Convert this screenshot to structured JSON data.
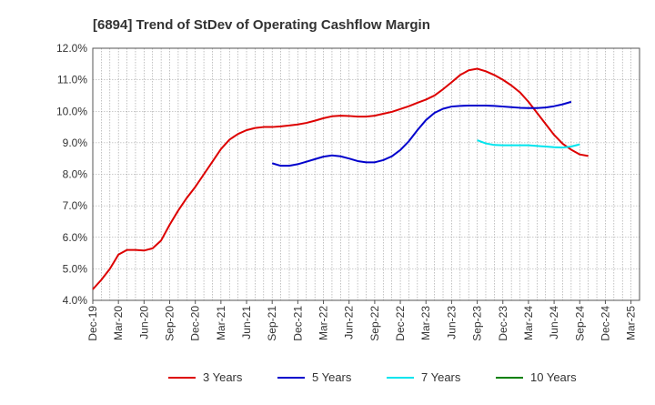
{
  "chart_data": {
    "type": "line",
    "title": "[6894]  Trend of StDev of Operating Cashflow Margin",
    "xlabel": "",
    "ylabel": "",
    "ylim": [
      4.0,
      12.0
    ],
    "y_ticks": [
      "4.0%",
      "5.0%",
      "6.0%",
      "7.0%",
      "8.0%",
      "9.0%",
      "10.0%",
      "11.0%",
      "12.0%"
    ],
    "x_ticks": [
      "Dec-19",
      "Mar-20",
      "Jun-20",
      "Sep-20",
      "Dec-20",
      "Mar-21",
      "Jun-21",
      "Sep-21",
      "Dec-21",
      "Mar-22",
      "Jun-22",
      "Sep-22",
      "Dec-22",
      "Mar-23",
      "Jun-23",
      "Sep-23",
      "Dec-23",
      "Mar-24",
      "Jun-24",
      "Sep-24",
      "Dec-24",
      "Mar-25"
    ],
    "grid": true,
    "legend_position": "bottom",
    "series": [
      {
        "name": "3 Years",
        "color": "#dd0000",
        "start_index": 0,
        "values": [
          4.35,
          4.65,
          5.0,
          5.45,
          5.6,
          5.6,
          5.58,
          5.65,
          5.9,
          6.4,
          6.85,
          7.25,
          7.6,
          8.0,
          8.4,
          8.8,
          9.1,
          9.28,
          9.4,
          9.47,
          9.5,
          9.5,
          9.52,
          9.55,
          9.58,
          9.63,
          9.7,
          9.78,
          9.84,
          9.86,
          9.85,
          9.83,
          9.83,
          9.86,
          9.92,
          9.98,
          10.07,
          10.16,
          10.27,
          10.37,
          10.5,
          10.7,
          10.92,
          11.15,
          11.3,
          11.35,
          11.27,
          11.15,
          11.0,
          10.82,
          10.6,
          10.3,
          9.95,
          9.6,
          9.25,
          8.97,
          8.78,
          8.63,
          8.58
        ]
      },
      {
        "name": "5 Years",
        "color": "#0000cc",
        "start_index": 21,
        "values": [
          8.35,
          8.27,
          8.27,
          8.32,
          8.4,
          8.48,
          8.56,
          8.6,
          8.57,
          8.5,
          8.42,
          8.38,
          8.38,
          8.45,
          8.57,
          8.77,
          9.05,
          9.4,
          9.72,
          9.95,
          10.08,
          10.15,
          10.17,
          10.18,
          10.18,
          10.18,
          10.17,
          10.15,
          10.13,
          10.11,
          10.1,
          10.1,
          10.12,
          10.16,
          10.22,
          10.3
        ]
      },
      {
        "name": "7 Years",
        "color": "#00e5ee",
        "start_index": 45,
        "values": [
          9.08,
          8.98,
          8.93,
          8.92,
          8.92,
          8.92,
          8.92,
          8.9,
          8.88,
          8.86,
          8.85,
          8.88,
          8.95
        ]
      },
      {
        "name": "10 Years",
        "color": "#008000",
        "start_index": 0,
        "values": []
      }
    ]
  }
}
